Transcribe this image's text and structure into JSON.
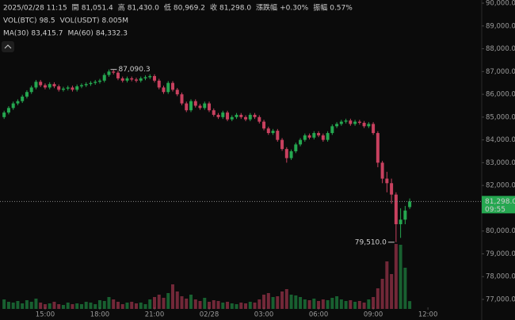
{
  "header": {
    "datetime": "2025/02/28 11:15",
    "fields": [
      {
        "label": "開",
        "value": "81,051.4"
      },
      {
        "label": "高",
        "value": "81,430.0"
      },
      {
        "label": "低",
        "value": "80,969.2"
      },
      {
        "label": "收",
        "value": "81,298.0"
      },
      {
        "label": "漲跌幅",
        "value": "+0.30%"
      },
      {
        "label": "振幅",
        "value": "0.57%"
      }
    ],
    "vol": [
      {
        "label": "VOL(BTC)",
        "value": "98.5"
      },
      {
        "label": "VOL(USDT)",
        "value": "8.005M"
      }
    ],
    "ma": [
      {
        "label": "MA(30)",
        "value": "83,415.7"
      },
      {
        "label": "MA(60)",
        "value": "84,332.3"
      }
    ]
  },
  "chart_data": {
    "type": "candlestick",
    "up_color": "#25a750",
    "down_color": "#c8415f",
    "ylim": [
      77000,
      90000
    ],
    "yticks": [
      {
        "value": 90000,
        "label": "90,000.0"
      },
      {
        "value": 89000,
        "label": "89,000.0"
      },
      {
        "value": 88000,
        "label": "88,000.0"
      },
      {
        "value": 87000,
        "label": "87,000.0"
      },
      {
        "value": 86000,
        "label": "86,000.0"
      },
      {
        "value": 85000,
        "label": "85,000.0"
      },
      {
        "value": 84000,
        "label": "84,000.0"
      },
      {
        "value": 83000,
        "label": "83,000.0"
      },
      {
        "value": 82000,
        "label": "82,000.0"
      },
      {
        "value": 81000,
        "label": "81,000.0"
      },
      {
        "value": 80000,
        "label": "80,000.0"
      },
      {
        "value": 79000,
        "label": "79,000.0"
      },
      {
        "value": 78000,
        "label": "78,000.0"
      },
      {
        "value": 77000,
        "label": "77,000.0"
      }
    ],
    "xlim": [
      -0.9,
      104.8
    ],
    "xticks": [
      {
        "value": 9,
        "label": "15:00"
      },
      {
        "value": 21,
        "label": "18:00"
      },
      {
        "value": 33,
        "label": "21:00"
      },
      {
        "value": 45,
        "label": "02/28"
      },
      {
        "value": 57,
        "label": "03:00"
      },
      {
        "value": 69,
        "label": "06:00"
      },
      {
        "value": 81,
        "label": "09:00"
      },
      {
        "value": 93,
        "label": "12:00"
      }
    ],
    "open": [
      85000,
      85200,
      85400,
      85600,
      85700,
      85900,
      86100,
      86300,
      86550,
      86400,
      86300,
      86450,
      86350,
      86200,
      86250,
      86300,
      86200,
      86350,
      86400,
      86450,
      86500,
      86550,
      86600,
      86850,
      87000,
      86950,
      86700,
      86600,
      86700,
      86650,
      86600,
      86700,
      86750,
      86800,
      86600,
      86300,
      86100,
      86500,
      86200,
      86000,
      85600,
      85300,
      85700,
      85500,
      85400,
      85600,
      85300,
      85100,
      85000,
      85200,
      84900,
      85000,
      85100,
      85000,
      84900,
      85100,
      85000,
      84800,
      84500,
      84300,
      84400,
      84000,
      83600,
      83200,
      83500,
      83800,
      84000,
      84200,
      84100,
      84300,
      84200,
      84000,
      84300,
      84600,
      84700,
      84800,
      84850,
      84700,
      84800,
      84750,
      84600,
      84700,
      84300,
      83000,
      82300,
      82100,
      81600,
      80300,
      80500,
      81051.4
    ],
    "high": [
      85280,
      85480,
      85680,
      85780,
      85980,
      86180,
      86380,
      86630,
      86630,
      86480,
      86530,
      86530,
      86430,
      86330,
      86380,
      86380,
      86430,
      86480,
      86530,
      86580,
      86630,
      86680,
      86930,
      87090.3,
      87080,
      87030,
      86780,
      86780,
      86780,
      86730,
      86780,
      86830,
      86880,
      86880,
      86680,
      86380,
      86580,
      86580,
      86280,
      86080,
      85680,
      85780,
      85780,
      85580,
      85680,
      85680,
      85380,
      85180,
      85280,
      85280,
      85080,
      85180,
      85180,
      85080,
      85180,
      85180,
      85080,
      84880,
      84580,
      84480,
      84480,
      84080,
      83680,
      83580,
      83880,
      84080,
      84280,
      84280,
      84380,
      84380,
      84280,
      84380,
      84680,
      84780,
      84880,
      84930,
      84930,
      84880,
      84880,
      84830,
      84780,
      84780,
      84380,
      83080,
      82600,
      82300,
      81700,
      81000,
      81100,
      81430
    ],
    "low": [
      84920,
      85120,
      85320,
      85520,
      85620,
      85820,
      86020,
      86220,
      86320,
      86220,
      86220,
      86270,
      86120,
      86120,
      86170,
      86120,
      86120,
      86270,
      86320,
      86370,
      86420,
      86470,
      86520,
      86770,
      86870,
      86620,
      86520,
      86520,
      86570,
      86520,
      86520,
      86620,
      86670,
      86520,
      86220,
      86020,
      86020,
      86120,
      85920,
      85520,
      85220,
      85220,
      85420,
      85320,
      85320,
      85220,
      85020,
      84920,
      84920,
      84820,
      84820,
      84920,
      84920,
      84820,
      84820,
      84920,
      84720,
      84420,
      84220,
      84220,
      83920,
      83520,
      83000,
      83120,
      83420,
      83720,
      83920,
      84020,
      84020,
      84120,
      83920,
      83920,
      84220,
      84520,
      84620,
      84720,
      84620,
      84620,
      84670,
      84520,
      84520,
      84220,
      82800,
      82100,
      81700,
      81200,
      79510,
      79700,
      80300,
      80969.2
    ],
    "close": [
      85200,
      85400,
      85600,
      85700,
      85900,
      86100,
      86300,
      86550,
      86400,
      86300,
      86450,
      86350,
      86200,
      86250,
      86300,
      86200,
      86350,
      86400,
      86450,
      86500,
      86550,
      86600,
      86850,
      87000,
      86950,
      86700,
      86600,
      86700,
      86650,
      86600,
      86700,
      86750,
      86800,
      86600,
      86300,
      86100,
      86500,
      86200,
      86000,
      85600,
      85300,
      85700,
      85500,
      85400,
      85600,
      85300,
      85100,
      85000,
      85200,
      84900,
      85000,
      85100,
      85000,
      84900,
      85100,
      85000,
      84800,
      84500,
      84300,
      84400,
      84000,
      83600,
      83200,
      83500,
      83800,
      84000,
      84200,
      84100,
      84300,
      84200,
      84000,
      84300,
      84600,
      84700,
      84800,
      84850,
      84700,
      84800,
      84750,
      84600,
      84700,
      84300,
      83000,
      82300,
      82100,
      81600,
      80300,
      80500,
      80900,
      81298
    ],
    "volume": [
      120,
      90,
      80,
      100,
      70,
      110,
      90,
      130,
      80,
      60,
      70,
      90,
      60,
      50,
      80,
      60,
      70,
      60,
      90,
      80,
      60,
      110,
      100,
      150,
      120,
      90,
      60,
      80,
      90,
      70,
      80,
      60,
      120,
      150,
      180,
      140,
      200,
      310,
      220,
      160,
      130,
      180,
      120,
      100,
      140,
      90,
      110,
      100,
      80,
      90,
      70,
      60,
      80,
      70,
      90,
      80,
      120,
      180,
      200,
      150,
      160,
      220,
      250,
      180,
      170,
      150,
      120,
      110,
      130,
      100,
      120,
      110,
      140,
      160,
      120,
      100,
      110,
      90,
      100,
      80,
      120,
      150,
      260,
      380,
      600,
      440,
      820,
      810,
      520,
      98.5
    ],
    "high_label": "87,090.3",
    "low_label": "79,510.0",
    "last_price": 81298,
    "last_price_label": "81,298.0",
    "countdown": "09:55"
  }
}
